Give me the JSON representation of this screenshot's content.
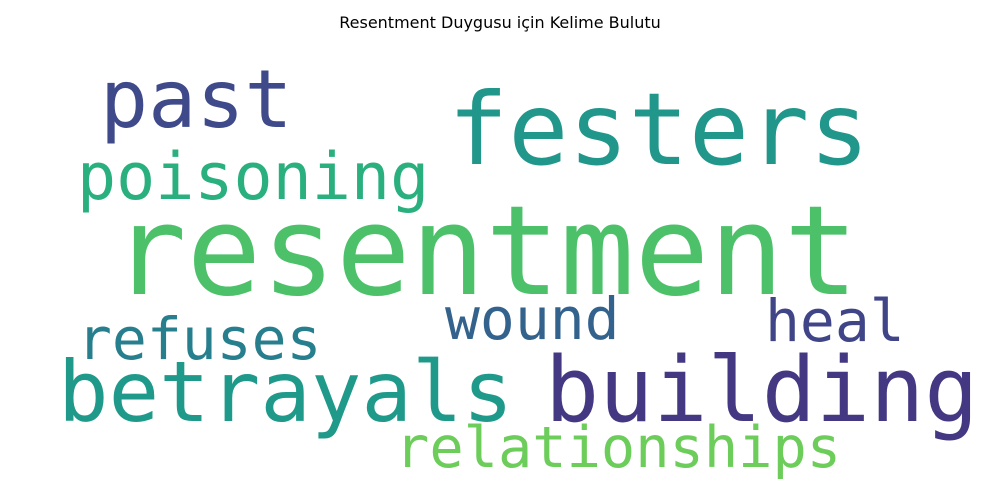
{
  "title": "Resentment Duygusu için Kelime Bulutu",
  "words": [
    {
      "text": "resentment",
      "color": "#4cc16a"
    },
    {
      "text": "festers",
      "color": "#21968b"
    },
    {
      "text": "past",
      "color": "#3f4a8a"
    },
    {
      "text": "poisoning",
      "color": "#2ab07f"
    },
    {
      "text": "betrayals",
      "color": "#1f9a8a"
    },
    {
      "text": "building",
      "color": "#453882"
    },
    {
      "text": "refuses",
      "color": "#277f8e"
    },
    {
      "text": "wound",
      "color": "#33638d"
    },
    {
      "text": "heal",
      "color": "#404588"
    },
    {
      "text": "relationships",
      "color": "#6ccd5a"
    }
  ]
}
